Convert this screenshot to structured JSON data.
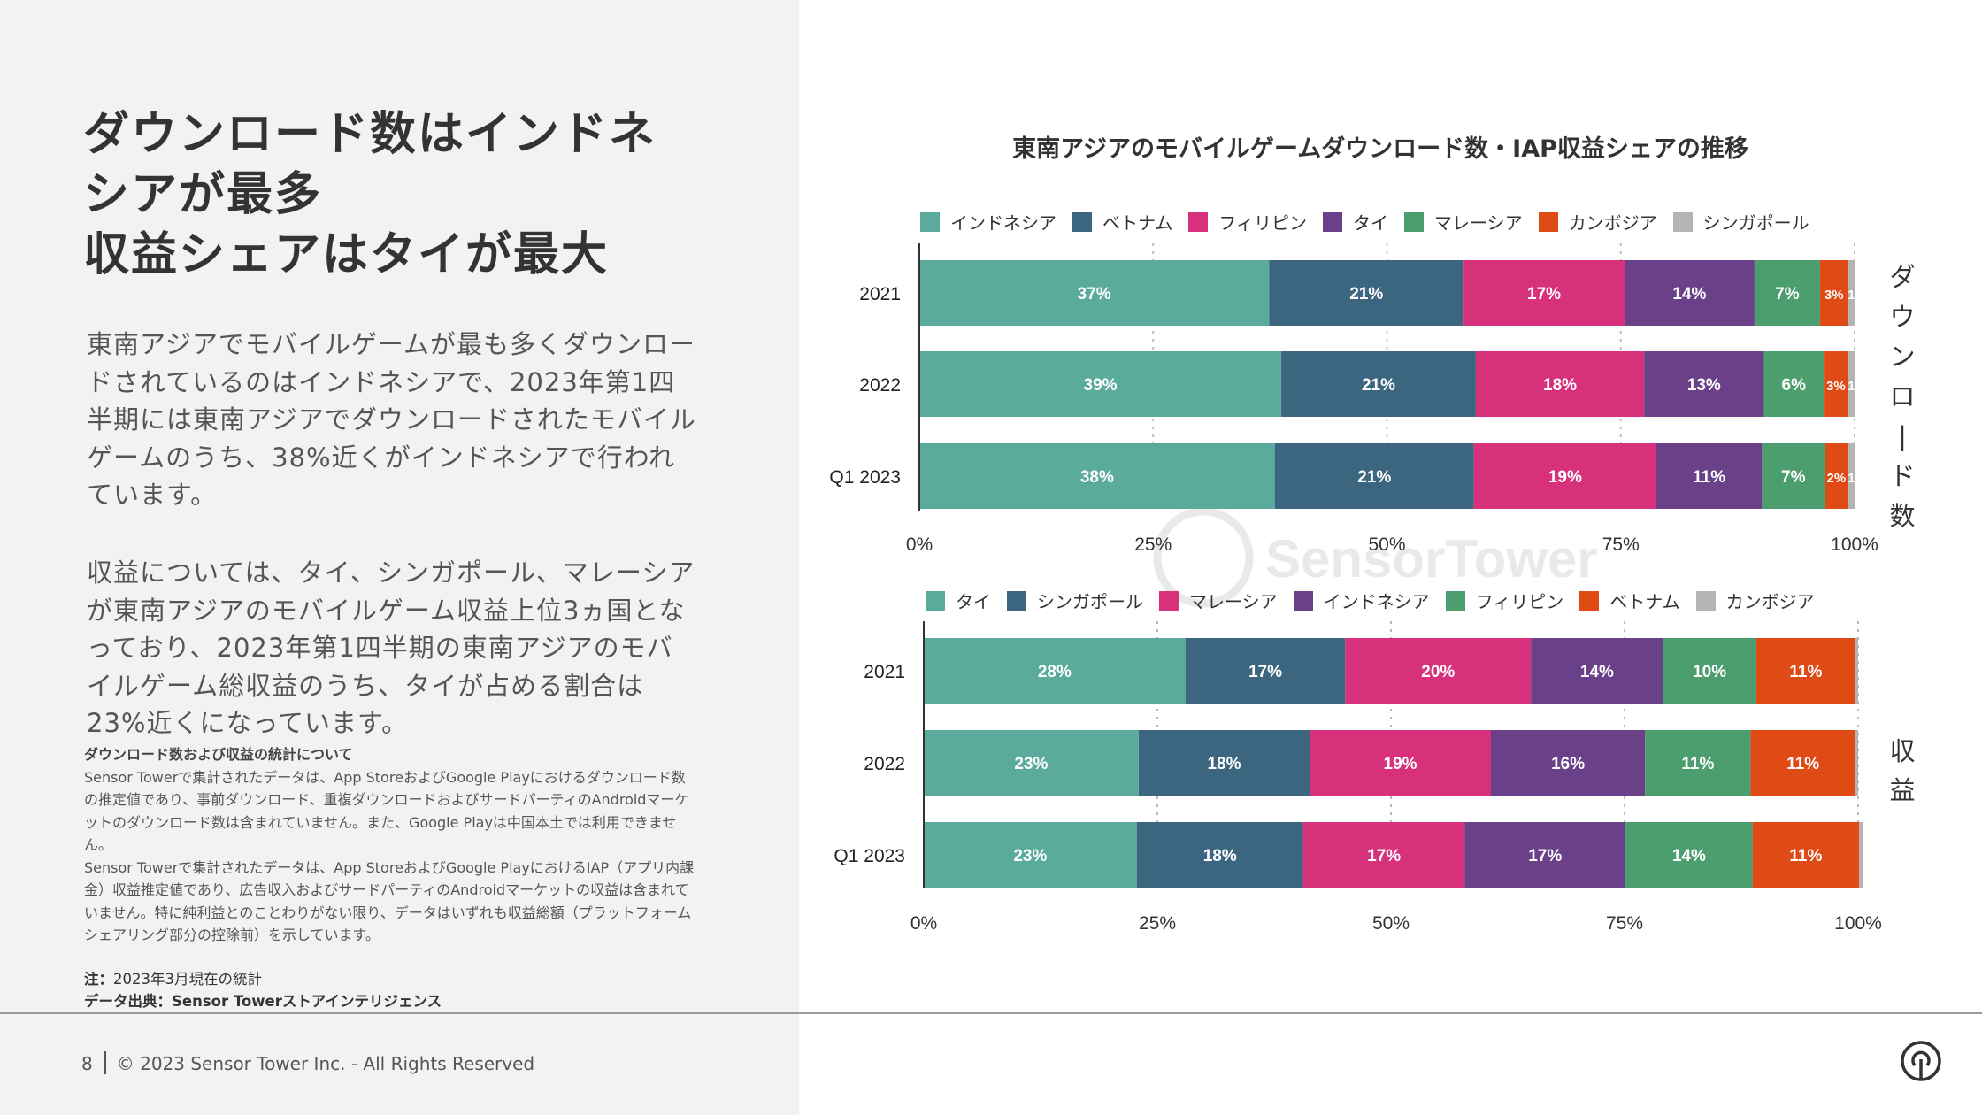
{
  "left": {
    "headline": "ダウンロード数はインドネ\nシアが最多\n収益シェアはタイが最大",
    "paragraph1": "東南アジアでモバイルゲームが最も多くダウンロードされているのはインドネシアで、2023年第1四半期には東南アジアでダウンロードされたモバイルゲームのうち、38%近くがインドネシアで行われています。",
    "paragraph2": "収益については、タイ、シンガポール、マレーシアが東南アジアのモバイルゲーム収益上位3ヵ国となっており、2023年第1四半期の東南アジアのモバイルゲーム総収益のうち、タイが占める割合は23%近くになっています。",
    "notes_heading": "ダウンロード数および収益の統計について",
    "notes_body1": "Sensor Towerで集計されたデータは、App StoreおよびGoogle Playにおけるダウンロード数の推定値であり、事前ダウンロード、重複ダウンロードおよびサードパーティのAndroidマーケットのダウンロード数は含まれていません。また、Google Playは中国本土では利用できません。",
    "notes_body2": "Sensor Towerで集計されたデータは、App StoreおよびGoogle PlayにおけるIAP（アプリ内課金）収益推定値であり、広告収入およびサードパーティのAndroidマーケットの収益は含まれていません。特に純利益とのことわりがない限り、データはいずれも収益総額（プラットフォームシェアリング部分の控除前）を示しています。",
    "note_label": "注：",
    "note_text": "2023年3月現在の統計",
    "source_label": "データ出典：",
    "source_text": "Sensor Towerストアインテリジェンス"
  },
  "footer": {
    "page": "8",
    "copyright": "© 2023 Sensor Tower Inc. - All Rights Reserved"
  },
  "watermark_text": "SensorTower",
  "chart_title": "東南アジアのモバイルゲームダウンロード数・IAP収益シェアの推移",
  "side_labels": {
    "downloads": [
      "ダ",
      "ウ",
      "ン",
      "ロ",
      "|",
      "ド",
      "数"
    ],
    "revenue": [
      "収",
      "益"
    ]
  },
  "chart_data": [
    {
      "type": "bar",
      "stacked": true,
      "orientation": "horizontal",
      "title": "ダウンロード数",
      "categories": [
        "2021",
        "2022",
        "Q1 2023"
      ],
      "xticks": [
        "0%",
        "25%",
        "50%",
        "75%",
        "100%"
      ],
      "xlim": [
        0,
        100
      ],
      "series": [
        {
          "name": "インドネシア",
          "color": "#5aab9c",
          "values": [
            37.4,
            38.7,
            38.0
          ],
          "labels": [
            "37%",
            "39%",
            "38%"
          ]
        },
        {
          "name": "ベトナム",
          "color": "#3c6580",
          "values": [
            20.8,
            20.8,
            21.3
          ],
          "labels": [
            "21%",
            "21%",
            "21%"
          ]
        },
        {
          "name": "フィリピン",
          "color": "#d6317a",
          "values": [
            17.2,
            18.0,
            19.5
          ],
          "labels": [
            "17%",
            "18%",
            "19%"
          ]
        },
        {
          "name": "タイ",
          "color": "#6a4189",
          "values": [
            13.9,
            12.8,
            11.3
          ],
          "labels": [
            "14%",
            "13%",
            "11%"
          ]
        },
        {
          "name": "マレーシア",
          "color": "#4d9e6e",
          "values": [
            7.0,
            6.4,
            6.7
          ],
          "labels": [
            "7%",
            "6%",
            "7%"
          ]
        },
        {
          "name": "カンボジア",
          "color": "#e04a15",
          "values": [
            3.0,
            2.6,
            2.5
          ],
          "labels": [
            "3%",
            "3%",
            "2%"
          ]
        },
        {
          "name": "シンガポール",
          "color": "#b4b4b4",
          "values": [
            0.7,
            0.7,
            0.7
          ],
          "labels": [
            "1",
            "1",
            "1"
          ]
        }
      ]
    },
    {
      "type": "bar",
      "stacked": true,
      "orientation": "horizontal",
      "title": "収益",
      "categories": [
        "2021",
        "2022",
        "Q1 2023"
      ],
      "xticks": [
        "0%",
        "25%",
        "50%",
        "75%",
        "100%"
      ],
      "xlim": [
        0,
        100
      ],
      "series": [
        {
          "name": "タイ",
          "color": "#5aab9c",
          "values": [
            28.0,
            23.0,
            22.8
          ],
          "labels": [
            "28%",
            "23%",
            "23%"
          ]
        },
        {
          "name": "シンガポール",
          "color": "#3c6580",
          "values": [
            17.1,
            18.3,
            17.8
          ],
          "labels": [
            "17%",
            "18%",
            "18%"
          ]
        },
        {
          "name": "マレーシア",
          "color": "#d6317a",
          "values": [
            19.9,
            19.4,
            17.3
          ],
          "labels": [
            "20%",
            "19%",
            "17%"
          ]
        },
        {
          "name": "インドネシア",
          "color": "#6a4189",
          "values": [
            14.1,
            16.5,
            17.2
          ],
          "labels": [
            "14%",
            "16%",
            "17%"
          ]
        },
        {
          "name": "フィリピン",
          "color": "#4d9e6e",
          "values": [
            10.0,
            11.3,
            13.6
          ],
          "labels": [
            "10%",
            "11%",
            "14%"
          ]
        },
        {
          "name": "ベトナム",
          "color": "#e04a15",
          "values": [
            10.6,
            11.2,
            11.4
          ],
          "labels": [
            "11%",
            "11%",
            "11%"
          ]
        },
        {
          "name": "カンボジア",
          "color": "#b4b4b4",
          "values": [
            0.3,
            0.3,
            0.4
          ],
          "labels": [
            "",
            "",
            ""
          ]
        }
      ]
    }
  ]
}
